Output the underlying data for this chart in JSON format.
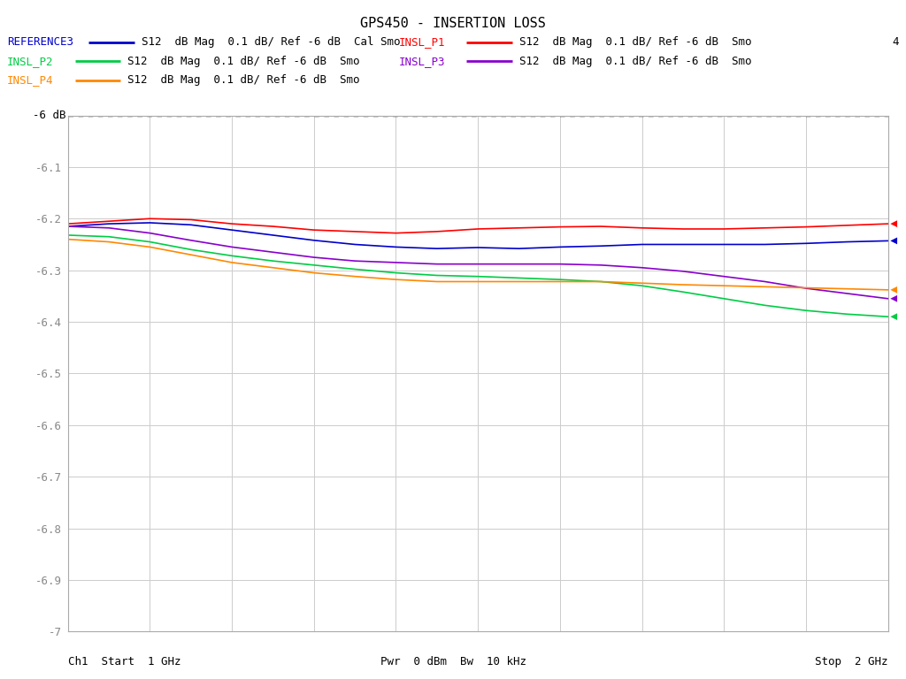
{
  "title": "GPS450 - INSERTION LOSS",
  "background_color": "#ffffff",
  "plot_bg_color": "#ffffff",
  "xmin": 1.0,
  "xmax": 2.0,
  "ymin": -7.0,
  "ymax": -6.0,
  "yticks": [
    -7.0,
    -6.9,
    -6.8,
    -6.7,
    -6.6,
    -6.5,
    -6.4,
    -6.3,
    -6.2,
    -6.1
  ],
  "ytick_labels": [
    "-7",
    "-6.9",
    "-6.8",
    "-6.7",
    "-6.6",
    "-6.5",
    "-6.4",
    "-6.3",
    "-6.2",
    "-6.1"
  ],
  "ref_line_y": -6.0,
  "ref_line_label": "-6 dB",
  "traces": [
    {
      "name": "REFERENCE3",
      "color": "#0000cc",
      "x": [
        1.0,
        1.05,
        1.1,
        1.15,
        1.2,
        1.25,
        1.3,
        1.35,
        1.4,
        1.45,
        1.5,
        1.55,
        1.6,
        1.65,
        1.7,
        1.75,
        1.8,
        1.85,
        1.9,
        1.95,
        2.0
      ],
      "y": [
        -6.215,
        -6.21,
        -6.208,
        -6.212,
        -6.222,
        -6.232,
        -6.242,
        -6.25,
        -6.255,
        -6.258,
        -6.256,
        -6.258,
        -6.255,
        -6.253,
        -6.25,
        -6.25,
        -6.25,
        -6.25,
        -6.248,
        -6.245,
        -6.243
      ]
    },
    {
      "name": "INSL_P1",
      "color": "#ff0000",
      "x": [
        1.0,
        1.05,
        1.1,
        1.15,
        1.2,
        1.25,
        1.3,
        1.35,
        1.4,
        1.45,
        1.5,
        1.55,
        1.6,
        1.65,
        1.7,
        1.75,
        1.8,
        1.85,
        1.9,
        1.95,
        2.0
      ],
      "y": [
        -6.21,
        -6.205,
        -6.2,
        -6.202,
        -6.21,
        -6.215,
        -6.222,
        -6.225,
        -6.228,
        -6.225,
        -6.22,
        -6.218,
        -6.216,
        -6.215,
        -6.218,
        -6.22,
        -6.22,
        -6.218,
        -6.216,
        -6.213,
        -6.21
      ]
    },
    {
      "name": "INSL_P2",
      "color": "#00cc44",
      "x": [
        1.0,
        1.05,
        1.1,
        1.15,
        1.2,
        1.25,
        1.3,
        1.35,
        1.4,
        1.45,
        1.5,
        1.55,
        1.6,
        1.65,
        1.7,
        1.75,
        1.8,
        1.85,
        1.9,
        1.95,
        2.0
      ],
      "y": [
        -6.232,
        -6.235,
        -6.245,
        -6.26,
        -6.272,
        -6.282,
        -6.29,
        -6.298,
        -6.305,
        -6.31,
        -6.312,
        -6.315,
        -6.318,
        -6.322,
        -6.33,
        -6.342,
        -6.355,
        -6.368,
        -6.378,
        -6.385,
        -6.39
      ]
    },
    {
      "name": "INSL_P3",
      "color": "#8800cc",
      "x": [
        1.0,
        1.05,
        1.1,
        1.15,
        1.2,
        1.25,
        1.3,
        1.35,
        1.4,
        1.45,
        1.5,
        1.55,
        1.6,
        1.65,
        1.7,
        1.75,
        1.8,
        1.85,
        1.9,
        1.95,
        2.0
      ],
      "y": [
        -6.215,
        -6.218,
        -6.228,
        -6.242,
        -6.255,
        -6.265,
        -6.275,
        -6.282,
        -6.285,
        -6.288,
        -6.288,
        -6.288,
        -6.288,
        -6.29,
        -6.295,
        -6.302,
        -6.312,
        -6.322,
        -6.335,
        -6.345,
        -6.355
      ]
    },
    {
      "name": "INSL_P4",
      "color": "#ff8800",
      "x": [
        1.0,
        1.05,
        1.1,
        1.15,
        1.2,
        1.25,
        1.3,
        1.35,
        1.4,
        1.45,
        1.5,
        1.55,
        1.6,
        1.65,
        1.7,
        1.75,
        1.8,
        1.85,
        1.9,
        1.95,
        2.0
      ],
      "y": [
        -6.24,
        -6.245,
        -6.255,
        -6.27,
        -6.285,
        -6.295,
        -6.305,
        -6.312,
        -6.318,
        -6.322,
        -6.322,
        -6.322,
        -6.322,
        -6.322,
        -6.325,
        -6.328,
        -6.33,
        -6.332,
        -6.334,
        -6.336,
        -6.338
      ]
    }
  ],
  "marker_order": [
    "REFERENCE3",
    "INSL_P1",
    "INSL_P2",
    "INSL_P3",
    "INSL_P4"
  ],
  "marker_colors": [
    "#0000cc",
    "#ff0000",
    "#00cc44",
    "#8800cc",
    "#ff8800"
  ],
  "triangle_number": "4",
  "legend_rows": [
    [
      {
        "name": "REFERENCE3",
        "color": "#0000cc",
        "desc": "S12  dB Mag  0.1 dB/ Ref -6 dB  Cal Smo"
      },
      {
        "name": "INSL_P1",
        "color": "#ff0000",
        "desc": "S12  dB Mag  0.1 dB/ Ref -6 dB  Smo"
      }
    ],
    [
      {
        "name": "INSL_P2",
        "color": "#00cc44",
        "desc": "S12  dB Mag  0.1 dB/ Ref -6 dB  Smo"
      },
      {
        "name": "INSL_P3",
        "color": "#8800cc",
        "desc": "S12  dB Mag  0.1 dB/ Ref -6 dB  Smo"
      }
    ],
    [
      {
        "name": "INSL_P4",
        "color": "#ff8800",
        "desc": "S12  dB Mag  0.1 dB/ Ref -6 dB  Smo"
      },
      null
    ]
  ]
}
